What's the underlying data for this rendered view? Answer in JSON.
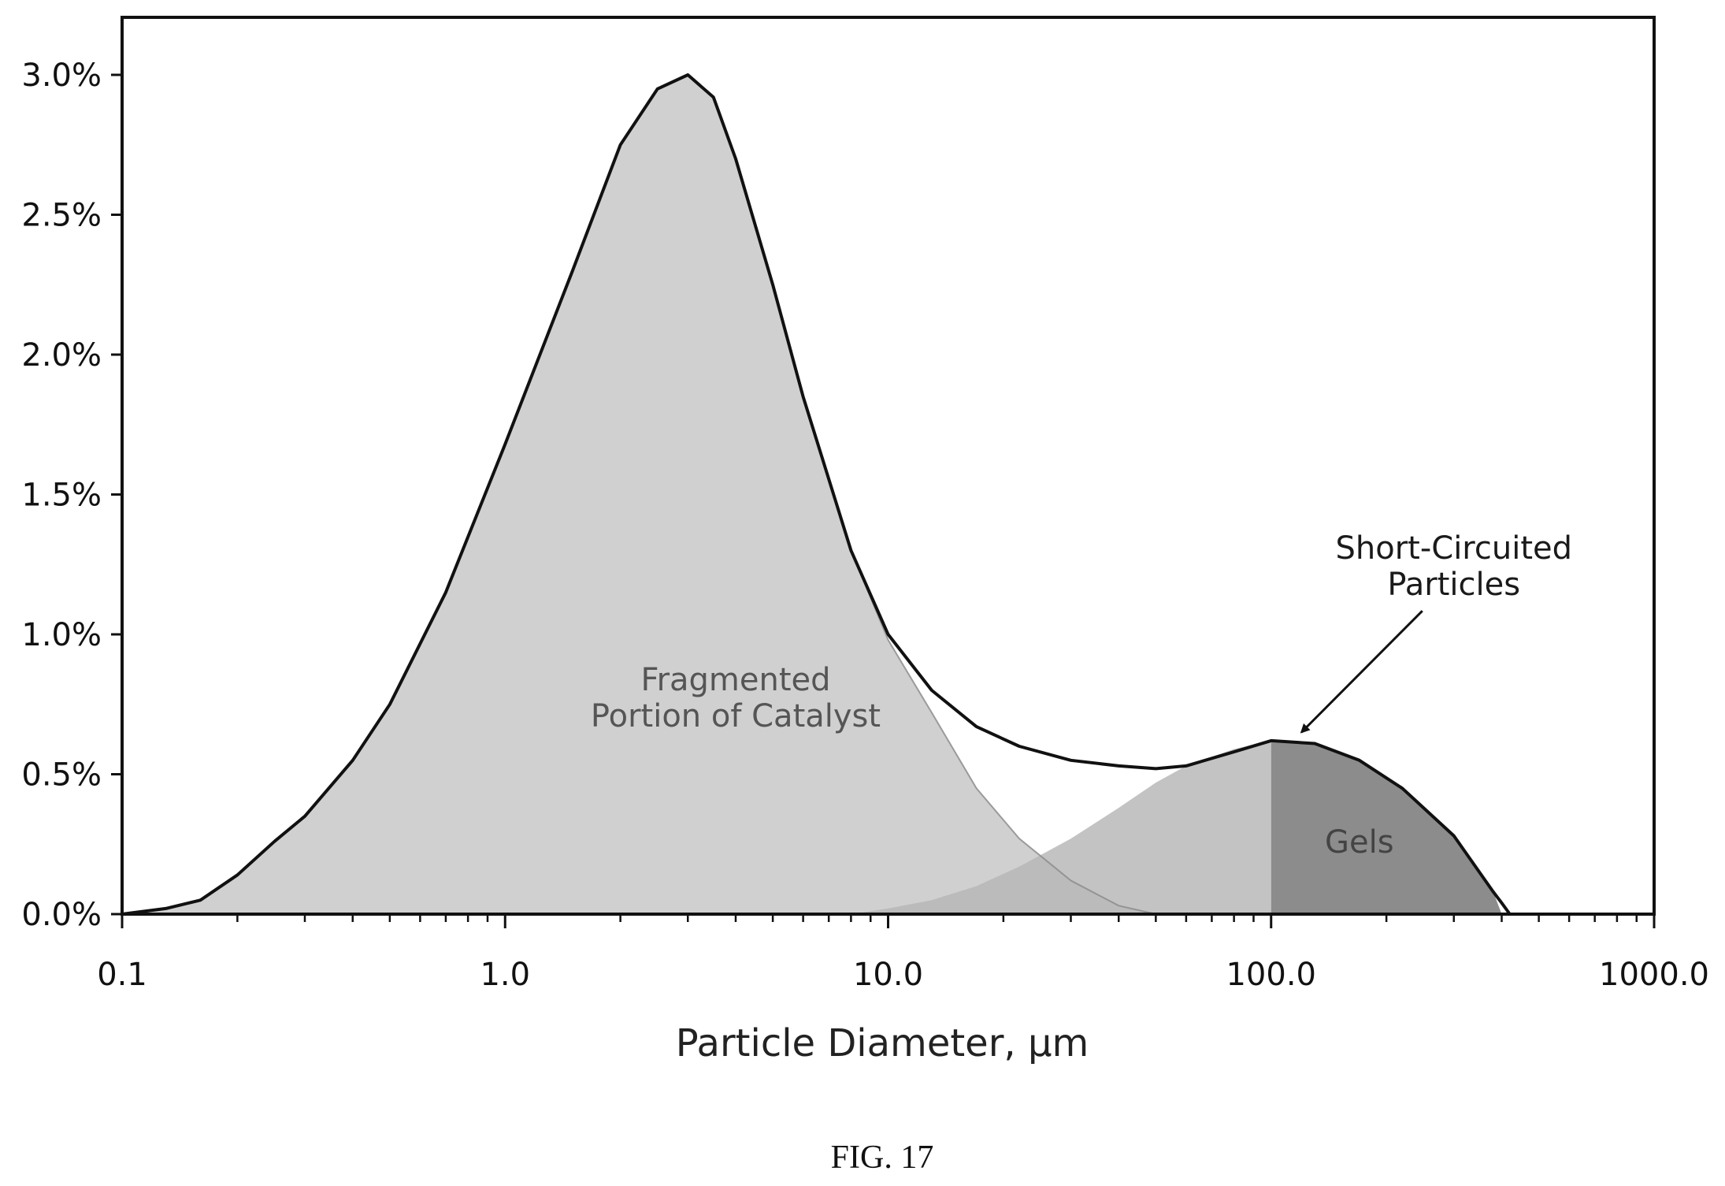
{
  "chart_data": {
    "type": "area",
    "x_scale": "log",
    "xlim": [
      0.1,
      1000.0
    ],
    "ylim": [
      0.0,
      3.2
    ],
    "xlabel": "Particle Diameter, µm",
    "ylabel": "",
    "x_ticks": [
      "0.1",
      "1.0",
      "10.0",
      "100.0",
      "1000.0"
    ],
    "x_tick_values": [
      0.1,
      1.0,
      10.0,
      100.0,
      1000.0
    ],
    "y_ticks": [
      "0.0%",
      "0.5%",
      "1.0%",
      "1.5%",
      "2.0%",
      "2.5%",
      "3.0%"
    ],
    "y_tick_values": [
      0.0,
      0.5,
      1.0,
      1.5,
      2.0,
      2.5,
      3.0
    ],
    "grid": false,
    "series": [
      {
        "role": "total",
        "color": "#111111",
        "x": [
          0.1,
          0.13,
          0.16,
          0.2,
          0.25,
          0.3,
          0.4,
          0.5,
          0.7,
          1.0,
          1.5,
          2.0,
          2.5,
          3.0,
          3.5,
          4.0,
          5.0,
          6.0,
          8.0,
          10.0,
          13.0,
          17.0,
          22.0,
          30.0,
          40.0,
          50.0,
          60.0,
          80.0,
          100.0,
          130.0,
          170.0,
          220.0,
          300.0,
          380.0,
          400.0,
          420.0,
          1000.0
        ],
        "y": [
          0.0,
          0.02,
          0.05,
          0.14,
          0.26,
          0.35,
          0.55,
          0.75,
          1.15,
          1.68,
          2.3,
          2.75,
          2.95,
          3.0,
          2.92,
          2.7,
          2.25,
          1.85,
          1.3,
          1.0,
          0.8,
          0.67,
          0.6,
          0.55,
          0.53,
          0.52,
          0.53,
          0.58,
          0.62,
          0.61,
          0.55,
          0.45,
          0.28,
          0.08,
          0.04,
          0.0,
          0.0
        ]
      },
      {
        "role": "fragmented",
        "color": "#c8c8c8",
        "x": [
          0.1,
          0.13,
          0.16,
          0.2,
          0.25,
          0.3,
          0.4,
          0.5,
          0.7,
          1.0,
          1.5,
          2.0,
          2.5,
          3.0,
          3.5,
          4.0,
          5.0,
          6.0,
          8.0,
          10.0,
          13.0,
          17.0,
          22.0,
          30.0,
          40.0,
          50.0
        ],
        "y": [
          0.0,
          0.02,
          0.05,
          0.14,
          0.26,
          0.35,
          0.55,
          0.75,
          1.15,
          1.68,
          2.3,
          2.75,
          2.95,
          3.0,
          2.92,
          2.7,
          2.25,
          1.85,
          1.3,
          0.98,
          0.72,
          0.45,
          0.27,
          0.12,
          0.03,
          0.0
        ]
      },
      {
        "role": "short-circuited",
        "color": "#d3d3d3",
        "x": [
          8.0,
          10.0,
          13.0,
          17.0,
          22.0,
          30.0,
          40.0,
          50.0,
          60.0,
          80.0,
          100.0
        ],
        "y": [
          0.0,
          0.02,
          0.05,
          0.1,
          0.17,
          0.27,
          0.38,
          0.47,
          0.53,
          0.59,
          0.62
        ]
      },
      {
        "role": "gels",
        "color": "#8c8c8c",
        "x": [
          100.0,
          130.0,
          170.0,
          220.0,
          300.0,
          380.0,
          400.0
        ],
        "y": [
          0.62,
          0.61,
          0.55,
          0.45,
          0.28,
          0.08,
          0.0
        ]
      }
    ],
    "annotations": [
      {
        "lines": [
          "Fragmented",
          "Portion of Catalyst"
        ],
        "x": 4.0,
        "y": 0.8,
        "color": "#555555"
      },
      {
        "lines": [
          "Short-Circuited",
          "Particles"
        ],
        "x": 300.0,
        "y": 1.27,
        "color": "#1a1a1a",
        "arrow_to": {
          "x": 120.0,
          "y": 0.65
        }
      },
      {
        "lines": [
          "Gels"
        ],
        "x": 170.0,
        "y": 0.22,
        "color": "#444444"
      }
    ],
    "caption": "FIG. 17"
  }
}
